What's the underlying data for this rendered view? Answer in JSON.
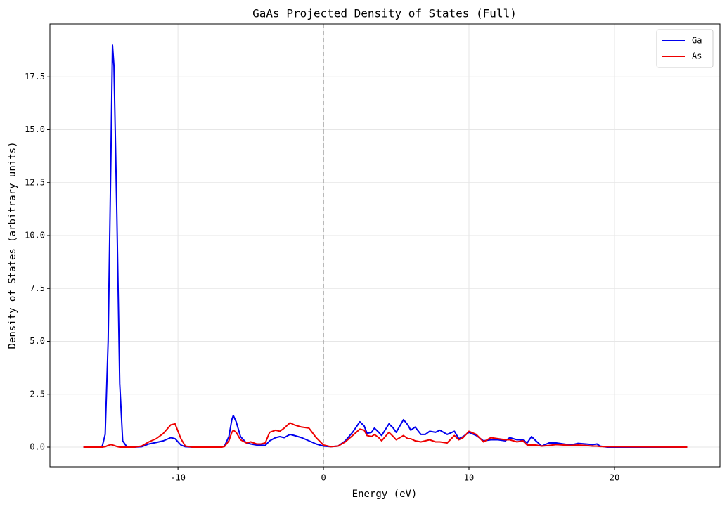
{
  "chart_data": {
    "type": "line",
    "title": "GaAs Projected Density of States (Full)",
    "xlabel": "Energy (eV)",
    "ylabel": "Density of States (arbitrary units)",
    "x": [
      -16.5,
      -15.5,
      -15.2,
      -15,
      -14.8,
      -14.6,
      -14.5,
      -14.4,
      -14.2,
      -14,
      -13.8,
      -13.5,
      -13,
      -12.5,
      -12,
      -11.5,
      -11,
      -10.5,
      -10.2,
      -9.8,
      -9.5,
      -9,
      -7,
      -6.8,
      -6.5,
      -6.3,
      -6.2,
      -6,
      -5.7,
      -5.3,
      -5,
      -4.6,
      -4.3,
      -4,
      -3.7,
      -3.3,
      -3,
      -2.7,
      -2.3,
      -2,
      -1.5,
      -1,
      -0.5,
      0,
      0.5,
      1,
      1.5,
      2,
      2.5,
      2.8,
      3,
      3.3,
      3.5,
      3.8,
      4,
      4.5,
      4.8,
      5,
      5.5,
      5.8,
      6,
      6.3,
      6.7,
      7,
      7.3,
      7.7,
      8,
      8.5,
      9,
      9.3,
      9.6,
      10,
      10.5,
      11,
      11.5,
      12,
      12.5,
      12.8,
      13.3,
      13.7,
      14,
      14.3,
      14.6,
      15,
      15.5,
      16,
      16.5,
      17,
      17.5,
      18,
      18.5,
      18.8,
      19,
      19.5,
      25
    ],
    "series": [
      {
        "name": "Ga",
        "color": "#0000ee",
        "values": [
          0,
          0,
          0.05,
          0.6,
          5,
          14,
          19,
          18,
          11,
          3,
          0.3,
          0,
          0,
          0.02,
          0.15,
          0.22,
          0.3,
          0.45,
          0.4,
          0.1,
          0.02,
          0,
          0,
          0.05,
          0.5,
          1.3,
          1.5,
          1.2,
          0.5,
          0.2,
          0.15,
          0.1,
          0.1,
          0.08,
          0.3,
          0.45,
          0.5,
          0.45,
          0.6,
          0.55,
          0.45,
          0.3,
          0.15,
          0.05,
          0.02,
          0.05,
          0.3,
          0.7,
          1.2,
          1.0,
          0.65,
          0.7,
          0.9,
          0.7,
          0.55,
          1.1,
          0.9,
          0.7,
          1.3,
          1.05,
          0.8,
          0.95,
          0.6,
          0.6,
          0.75,
          0.7,
          0.8,
          0.6,
          0.75,
          0.4,
          0.5,
          0.7,
          0.55,
          0.3,
          0.35,
          0.35,
          0.3,
          0.45,
          0.35,
          0.35,
          0.2,
          0.5,
          0.3,
          0.05,
          0.2,
          0.2,
          0.15,
          0.1,
          0.18,
          0.15,
          0.12,
          0.15,
          0.05,
          0,
          0
        ]
      },
      {
        "name": "As",
        "color": "#ee0000",
        "values": [
          0,
          0,
          0,
          0.02,
          0.08,
          0.12,
          0.1,
          0.08,
          0.03,
          0,
          0,
          0,
          0,
          0.05,
          0.25,
          0.4,
          0.65,
          1.05,
          1.1,
          0.4,
          0.05,
          0,
          0,
          0.03,
          0.3,
          0.7,
          0.8,
          0.7,
          0.35,
          0.2,
          0.25,
          0.15,
          0.15,
          0.2,
          0.7,
          0.8,
          0.75,
          0.9,
          1.15,
          1.05,
          0.95,
          0.9,
          0.45,
          0.1,
          0.02,
          0.05,
          0.25,
          0.55,
          0.85,
          0.8,
          0.55,
          0.5,
          0.6,
          0.45,
          0.3,
          0.7,
          0.5,
          0.35,
          0.55,
          0.4,
          0.4,
          0.3,
          0.25,
          0.3,
          0.35,
          0.25,
          0.25,
          0.2,
          0.55,
          0.35,
          0.45,
          0.75,
          0.6,
          0.25,
          0.45,
          0.4,
          0.35,
          0.35,
          0.25,
          0.3,
          0.1,
          0.1,
          0.1,
          0.05,
          0.08,
          0.12,
          0.1,
          0.08,
          0.1,
          0.08,
          0.05,
          0.05,
          0.03,
          0.02,
          0
        ]
      }
    ],
    "vline": 0,
    "xlim": [
      -18.8,
      27.25
    ],
    "ylim": [
      -0.93,
      20.0
    ],
    "xticks": [
      -10,
      0,
      10,
      20
    ],
    "yticks": [
      {
        "value": 0,
        "label": "0.0"
      },
      2.5,
      {
        "value": 5,
        "label": "5.0"
      },
      7.5,
      {
        "value": 10,
        "label": "10.0"
      },
      12.5,
      {
        "value": 15,
        "label": "15.0"
      },
      17.5
    ],
    "grid": true,
    "legend": "upper right"
  }
}
